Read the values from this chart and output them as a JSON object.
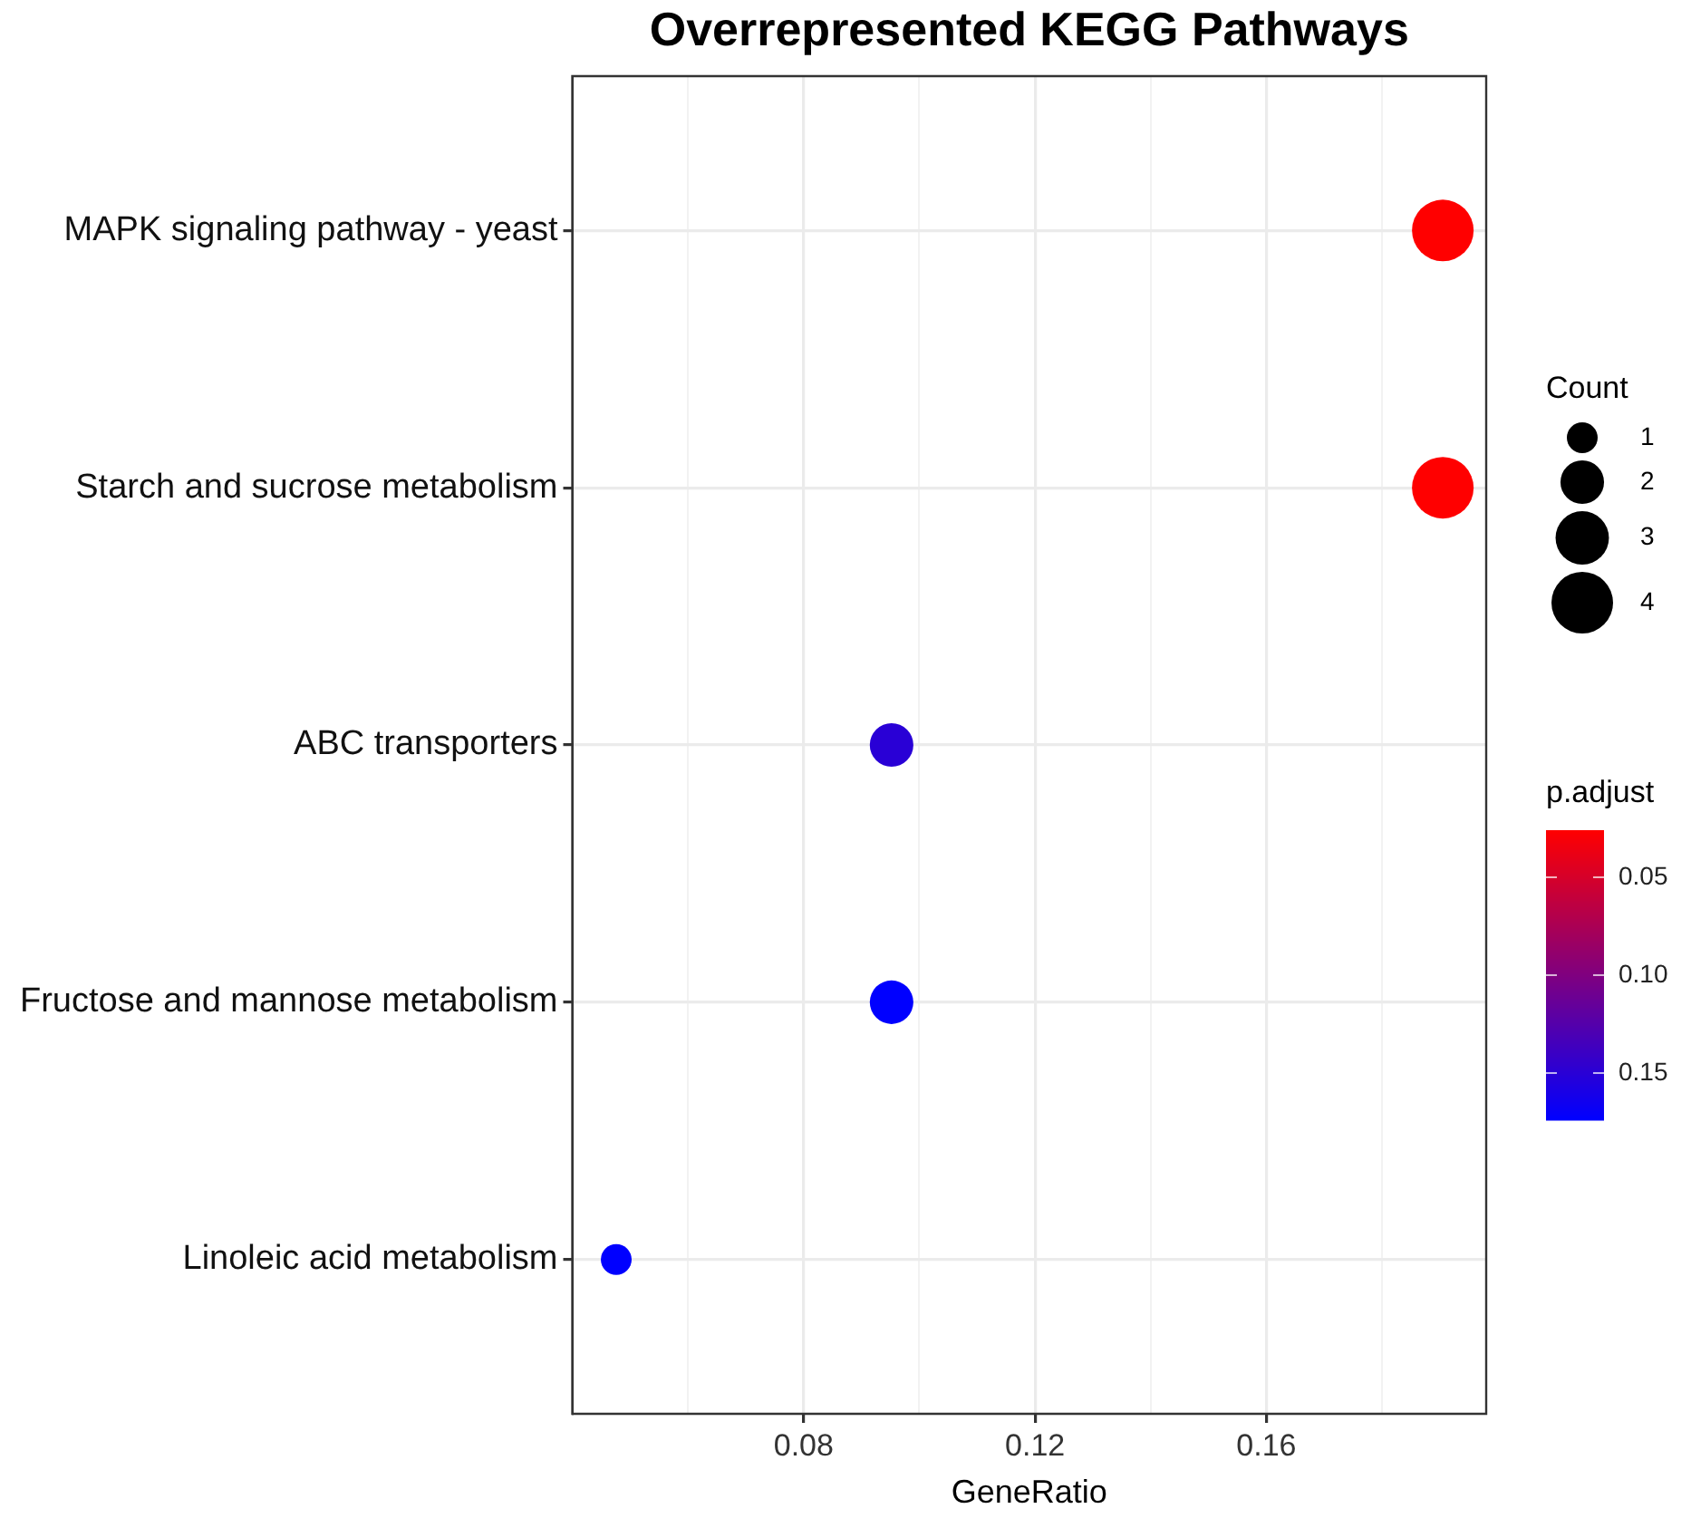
{
  "chart_data": {
    "type": "bubble",
    "orientation": "horizontal",
    "title": "Overrepresented KEGG Pathways",
    "xlabel": "GeneRatio",
    "categories": [
      "MAPK signaling pathway - yeast",
      "Starch and sucrose metabolism",
      "ABC transporters",
      "Fructose and mannose metabolism",
      "Linoleic acid metabolism"
    ],
    "values": [
      0.1905,
      0.1905,
      0.0952,
      0.0952,
      0.0476
    ],
    "sizes": [
      4,
      4,
      2,
      2,
      1
    ],
    "size_legend": [
      1,
      2,
      3,
      4
    ],
    "legend_title": "Count",
    "cvalues": [
      0.026,
      0.026,
      0.15,
      0.174,
      0.174
    ],
    "clabel": "p.adjust",
    "clim": [
      0.026,
      0.174
    ],
    "cticks": [
      0.05,
      {
        "value": 0.1,
        "label": "0.10"
      },
      0.15
    ],
    "xlim": [
      0.04,
      0.198
    ],
    "xticks": [
      {
        "value": 0.06,
        "label": null
      },
      0.08,
      {
        "value": 0.1,
        "label": null
      },
      0.12,
      {
        "value": 0.14,
        "label": null
      },
      0.16,
      {
        "value": 0.18,
        "label": null
      }
    ],
    "grid": true,
    "marker": "circle"
  }
}
